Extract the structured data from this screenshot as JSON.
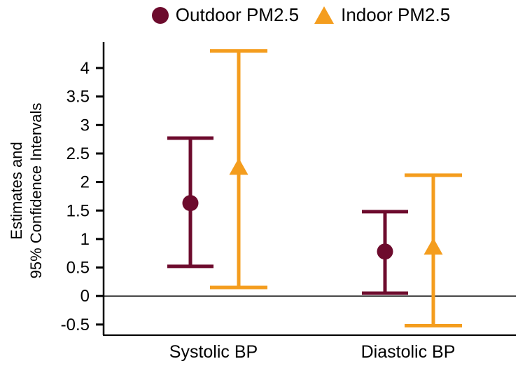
{
  "y_axis": {
    "label_line1": "Estimates and",
    "label_line2": "95% Confidence Intervals"
  },
  "chart_data": {
    "type": "scatter",
    "subtype": "point-estimates-with-error-bars",
    "title": "",
    "xlabel": "",
    "ylabel": "Estimates and 95% Confidence Intervals",
    "categories": [
      "Systolic BP",
      "Diastolic BP"
    ],
    "ylim": [
      -0.7,
      4.35
    ],
    "zero_reference_line": 0,
    "grid": false,
    "legend_position": "top",
    "y_ticks": [
      {
        "value": 4,
        "label": "4"
      },
      {
        "value": 3.5,
        "label": "3.5"
      },
      {
        "value": 3,
        "label": "3"
      },
      {
        "value": 2.5,
        "label": "2.5"
      },
      {
        "value": 2,
        "label": "2"
      },
      {
        "value": 1.5,
        "label": "1.5"
      },
      {
        "value": 1,
        "label": "1"
      },
      {
        "value": 0.5,
        "label": "0.5"
      },
      {
        "value": 0,
        "label": "0"
      },
      {
        "value": -0.5,
        "label": "-0.5"
      }
    ],
    "series": [
      {
        "name": "Outdoor PM2.5",
        "marker": "circle",
        "color": "#6d0b2d",
        "points": [
          {
            "category": "Systolic BP",
            "estimate": 1.63,
            "ci_low": 0.52,
            "ci_high": 2.77
          },
          {
            "category": "Diastolic BP",
            "estimate": 0.78,
            "ci_low": 0.05,
            "ci_high": 1.48
          }
        ]
      },
      {
        "name": "Indoor PM2.5",
        "marker": "triangle",
        "color": "#f49d1e",
        "points": [
          {
            "category": "Systolic BP",
            "estimate": 2.25,
            "ci_low": 0.15,
            "ci_high": 4.3
          },
          {
            "category": "Diastolic BP",
            "estimate": 0.85,
            "ci_low": -0.52,
            "ci_high": 2.12
          }
        ]
      }
    ]
  }
}
